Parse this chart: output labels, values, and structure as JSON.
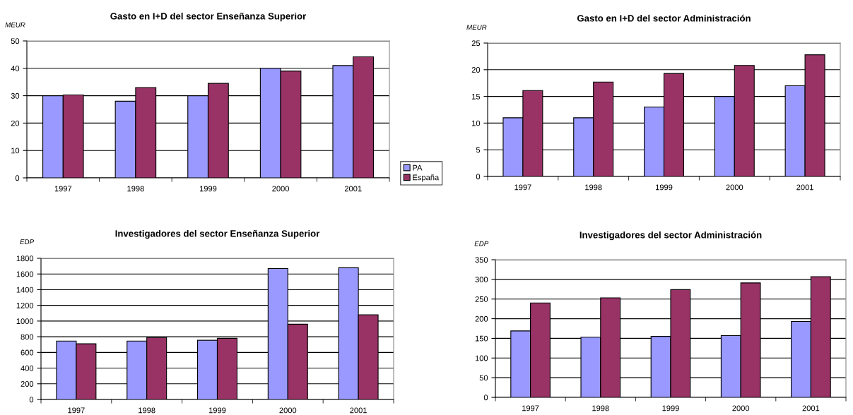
{
  "chart_data": [
    {
      "type": "bar",
      "title": "Gasto en I+D del sector Enseñanza Superior",
      "ylabel": "MEUR",
      "categories": [
        "1997",
        "1998",
        "1999",
        "2000",
        "2001"
      ],
      "series": [
        {
          "name": "PA",
          "color": "#9999ff",
          "values": [
            30,
            28,
            30,
            40,
            41
          ]
        },
        {
          "name": "España",
          "color": "#993366",
          "values": [
            30.3,
            33,
            34.5,
            39,
            44.2
          ]
        }
      ],
      "ylim": [
        0,
        50
      ],
      "yticks": [
        0,
        10,
        20,
        30,
        40,
        50
      ],
      "grid": "y",
      "legend": "right"
    },
    {
      "type": "bar",
      "title": "Gasto en I+D del sector Administración",
      "ylabel": "MEUR",
      "categories": [
        "1997",
        "1998",
        "1999",
        "2000",
        "2001"
      ],
      "series": [
        {
          "color": "#9999ff",
          "values": [
            11,
            11,
            13,
            15,
            17
          ]
        },
        {
          "color": "#993366",
          "values": [
            16.1,
            17.7,
            19.3,
            20.8,
            22.8
          ]
        }
      ],
      "ylim": [
        0,
        25
      ],
      "yticks": [
        0,
        5,
        10,
        15,
        20,
        25
      ],
      "grid": "y"
    },
    {
      "type": "bar",
      "title": "Investigadores del sector Enseñanza Superior",
      "ylabel": "EDP",
      "categories": [
        "1997",
        "1998",
        "1999",
        "2000",
        "2001"
      ],
      "series": [
        {
          "color": "#9999ff",
          "values": [
            745,
            745,
            755,
            1670,
            1680
          ]
        },
        {
          "color": "#993366",
          "values": [
            710,
            790,
            780,
            960,
            1080
          ]
        }
      ],
      "ylim": [
        0,
        1800
      ],
      "yticks": [
        0,
        200,
        400,
        600,
        800,
        1000,
        1200,
        1400,
        1600,
        1800
      ],
      "grid": "y"
    },
    {
      "type": "bar",
      "title": "Investigadores del sector Administración",
      "ylabel": "EDP",
      "categories": [
        "1997",
        "1998",
        "1999",
        "2000",
        "2001"
      ],
      "series": [
        {
          "color": "#9999ff",
          "values": [
            169,
            153,
            155,
            157,
            193
          ]
        },
        {
          "color": "#993366",
          "values": [
            240,
            253,
            274,
            291,
            307
          ]
        }
      ],
      "ylim": [
        0,
        350
      ],
      "yticks": [
        0,
        50,
        100,
        150,
        200,
        250,
        300,
        350
      ],
      "grid": "y"
    }
  ]
}
